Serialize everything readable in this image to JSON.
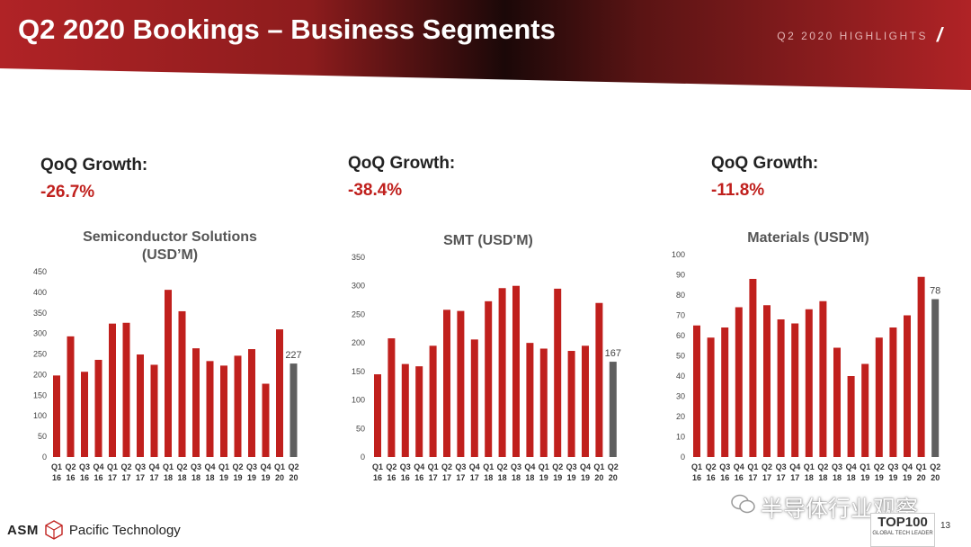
{
  "header": {
    "title": "Q2 2020 Bookings – Business Segments",
    "highlights": "Q2 2020 HIGHLIGHTS",
    "slash": "/"
  },
  "colors": {
    "bar_red": "#c0201d",
    "bar_current": "#5f5f5f",
    "banner_red": "#b02326",
    "banner_dark": "#1b0808",
    "growth_red": "#c0201d"
  },
  "segments": [
    {
      "growth_label": "QoQ Growth:",
      "growth_value": "-26.7%"
    },
    {
      "growth_label": "QoQ Growth:",
      "growth_value": "-38.4%"
    },
    {
      "growth_label": "QoQ Growth:",
      "growth_value": "-11.8%"
    }
  ],
  "chart_data": [
    {
      "type": "bar",
      "title": "Semiconductor Solutions (USD’M)",
      "title_lines": [
        "Semiconductor Solutions",
        "(USD’M)"
      ],
      "categories": [
        [
          "Q1",
          "16"
        ],
        [
          "Q2",
          "16"
        ],
        [
          "Q3",
          "16"
        ],
        [
          "Q4",
          "16"
        ],
        [
          "Q1",
          "17"
        ],
        [
          "Q2",
          "17"
        ],
        [
          "Q3",
          "17"
        ],
        [
          "Q4",
          "17"
        ],
        [
          "Q1",
          "18"
        ],
        [
          "Q2",
          "18"
        ],
        [
          "Q3",
          "18"
        ],
        [
          "Q4",
          "18"
        ],
        [
          "Q1",
          "19"
        ],
        [
          "Q2",
          "19"
        ],
        [
          "Q3",
          "19"
        ],
        [
          "Q4",
          "19"
        ],
        [
          "Q1",
          "20"
        ],
        [
          "Q2",
          "20"
        ]
      ],
      "values": [
        198,
        293,
        207,
        236,
        324,
        326,
        249,
        224,
        406,
        354,
        264,
        233,
        222,
        246,
        262,
        178,
        310,
        227
      ],
      "ylim": [
        0,
        450
      ],
      "yticks": [
        0,
        50,
        100,
        150,
        200,
        250,
        300,
        350,
        400,
        450
      ],
      "data_label": "227",
      "highlight_index": 17
    },
    {
      "type": "bar",
      "title": "SMT (USD'M)",
      "title_lines": [
        "SMT (USD'M)"
      ],
      "categories": [
        [
          "Q1",
          "16"
        ],
        [
          "Q2",
          "16"
        ],
        [
          "Q3",
          "16"
        ],
        [
          "Q4",
          "16"
        ],
        [
          "Q1",
          "17"
        ],
        [
          "Q2",
          "17"
        ],
        [
          "Q3",
          "17"
        ],
        [
          "Q4",
          "17"
        ],
        [
          "Q1",
          "18"
        ],
        [
          "Q2",
          "18"
        ],
        [
          "Q3",
          "18"
        ],
        [
          "Q4",
          "18"
        ],
        [
          "Q1",
          "19"
        ],
        [
          "Q2",
          "19"
        ],
        [
          "Q3",
          "19"
        ],
        [
          "Q4",
          "19"
        ],
        [
          "Q1",
          "20"
        ],
        [
          "Q2",
          "20"
        ]
      ],
      "values": [
        145,
        208,
        163,
        159,
        195,
        258,
        256,
        206,
        273,
        296,
        300,
        200,
        190,
        295,
        186,
        195,
        270,
        167
      ],
      "ylim": [
        0,
        350
      ],
      "yticks": [
        0,
        50,
        100,
        150,
        200,
        250,
        300,
        350
      ],
      "data_label": "167",
      "highlight_index": 17
    },
    {
      "type": "bar",
      "title": "Materials (USD'M)",
      "title_lines": [
        "Materials (USD'M)"
      ],
      "categories": [
        [
          "Q1",
          "16"
        ],
        [
          "Q2",
          "16"
        ],
        [
          "Q3",
          "16"
        ],
        [
          "Q4",
          "16"
        ],
        [
          "Q1",
          "17"
        ],
        [
          "Q2",
          "17"
        ],
        [
          "Q3",
          "17"
        ],
        [
          "Q4",
          "17"
        ],
        [
          "Q1",
          "18"
        ],
        [
          "Q2",
          "18"
        ],
        [
          "Q3",
          "18"
        ],
        [
          "Q4",
          "18"
        ],
        [
          "Q1",
          "19"
        ],
        [
          "Q2",
          "19"
        ],
        [
          "Q3",
          "19"
        ],
        [
          "Q4",
          "19"
        ],
        [
          "Q1",
          "20"
        ],
        [
          "Q2",
          "20"
        ]
      ],
      "values": [
        65,
        59,
        64,
        74,
        88,
        75,
        68,
        66,
        73,
        77,
        54,
        40,
        46,
        59,
        64,
        70,
        89,
        78
      ],
      "ylim": [
        0,
        100
      ],
      "yticks": [
        0,
        10,
        20,
        30,
        40,
        50,
        60,
        70,
        80,
        90,
        100
      ],
      "data_label": "78",
      "highlight_index": 17
    }
  ],
  "footer": {
    "company_short": "ASM",
    "company_name": "Pacific Technology",
    "watermark": "半导体行业观察",
    "badge_main": "TOP100",
    "badge_sub": "GLOBAL TECH LEADER",
    "page_number": "13"
  }
}
